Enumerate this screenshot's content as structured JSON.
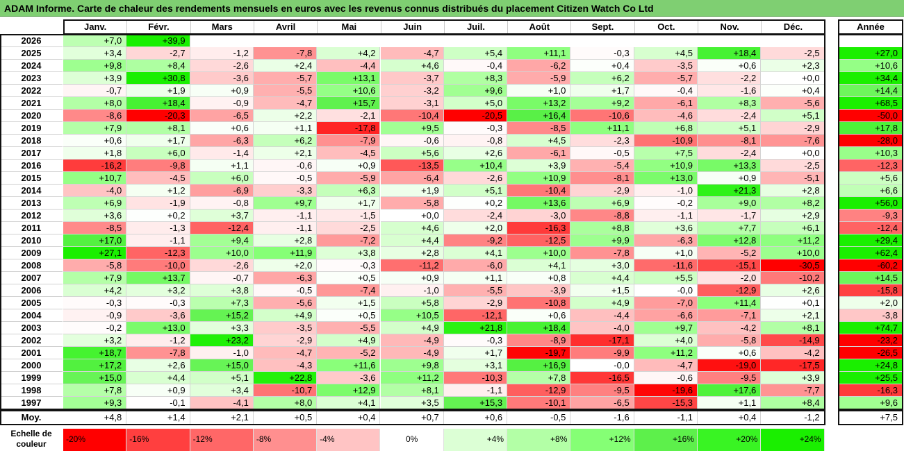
{
  "title": "ADAM Informe. Carte de chaleur des rendements mensuels en euros avec les revenus connus distribués du placement Citizen Watch Co Ltd",
  "chart_data": {
    "type": "heatmap",
    "title": "ADAM Informe. Carte de chaleur des rendements mensuels en euros avec les revenus connus distribués du placement Citizen Watch Co Ltd",
    "columns": [
      "Janv.",
      "Févr.",
      "Mars",
      "Avril",
      "Mai",
      "Juin",
      "Juil.",
      "Août",
      "Sept.",
      "Oct.",
      "Nov.",
      "Déc."
    ],
    "year_header": "Année",
    "rows": [
      {
        "year": "2026",
        "months": [
          "+7,0",
          "+39,9",
          "",
          "",
          "",
          "",
          "",
          "",
          "",
          "",
          "",
          ""
        ],
        "annual": ""
      },
      {
        "year": "2025",
        "months": [
          "+3,4",
          "-2,7",
          "-1,2",
          "-7,8",
          "+4,2",
          "-4,7",
          "+5,4",
          "+11,1",
          "-0,3",
          "+4,5",
          "+18,4",
          "-2,5"
        ],
        "annual": "+27,0"
      },
      {
        "year": "2024",
        "months": [
          "+9,8",
          "+8,4",
          "-2,6",
          "+2,4",
          "-4,4",
          "+4,6",
          "-0,4",
          "-6,2",
          "+0,4",
          "-3,5",
          "+0,6",
          "+2,3"
        ],
        "annual": "+10,6"
      },
      {
        "year": "2023",
        "months": [
          "+3,9",
          "+30,8",
          "-3,6",
          "-5,7",
          "+13,1",
          "-3,7",
          "+8,3",
          "-5,9",
          "+6,2",
          "-5,7",
          "-2,2",
          "+0,0"
        ],
        "annual": "+34,4"
      },
      {
        "year": "2022",
        "months": [
          "-0,7",
          "+1,9",
          "+0,9",
          "-5,5",
          "+10,6",
          "-3,2",
          "+9,6",
          "+1,0",
          "+1,7",
          "-0,4",
          "-1,6",
          "+0,4"
        ],
        "annual": "+14,4"
      },
      {
        "year": "2021",
        "months": [
          "+8,0",
          "+18,4",
          "-0,9",
          "-4,7",
          "+15,7",
          "-3,1",
          "+5,0",
          "+13,2",
          "+9,2",
          "-6,1",
          "+8,3",
          "-5,6"
        ],
        "annual": "+68,5"
      },
      {
        "year": "2020",
        "months": [
          "-8,6",
          "-20,3",
          "-6,5",
          "+2,2",
          "-2,1",
          "-10,4",
          "-20,5",
          "+16,4",
          "-10,6",
          "-4,6",
          "-2,4",
          "+5,1"
        ],
        "annual": "-50,0"
      },
      {
        "year": "2019",
        "months": [
          "+7,9",
          "+8,1",
          "+0,6",
          "+1,1",
          "-17,8",
          "+9,5",
          "-0,3",
          "-8,5",
          "+11,1",
          "+6,8",
          "+5,1",
          "-2,9"
        ],
        "annual": "+17,8"
      },
      {
        "year": "2018",
        "months": [
          "+0,6",
          "+1,7",
          "-6,3",
          "+6,2",
          "-7,9",
          "-0,6",
          "-0,8",
          "+4,5",
          "-2,3",
          "-10,9",
          "-8,1",
          "-7,6"
        ],
        "annual": "-28,0"
      },
      {
        "year": "2017",
        "months": [
          "+1,8",
          "+6,0",
          "-1,4",
          "+2,1",
          "-4,5",
          "+5,6",
          "+2,6",
          "-6,1",
          "-0,5",
          "+7,5",
          "-2,4",
          "+0,0"
        ],
        "annual": "+10,3"
      },
      {
        "year": "2016",
        "months": [
          "-16,2",
          "-9,8",
          "+1,1",
          "-0,6",
          "+0,9",
          "-13,5",
          "+10,4",
          "+3,9",
          "-5,4",
          "+10,9",
          "+13,3",
          "-2,5"
        ],
        "annual": "-12,3"
      },
      {
        "year": "2015",
        "months": [
          "+10,7",
          "-4,5",
          "+6,0",
          "-0,5",
          "-5,9",
          "-6,4",
          "-2,6",
          "+10,9",
          "-8,1",
          "+13,0",
          "+0,9",
          "-5,1"
        ],
        "annual": "+5,6"
      },
      {
        "year": "2014",
        "months": [
          "-4,0",
          "+1,2",
          "-6,9",
          "-3,3",
          "+6,3",
          "+1,9",
          "+5,1",
          "-10,4",
          "-2,9",
          "-1,0",
          "+21,3",
          "+2,8"
        ],
        "annual": "+6,6"
      },
      {
        "year": "2013",
        "months": [
          "+6,9",
          "-1,9",
          "-0,8",
          "+9,7",
          "+1,7",
          "-5,8",
          "+0,2",
          "+13,6",
          "+6,9",
          "-0,2",
          "+9,0",
          "+8,2"
        ],
        "annual": "+56,0"
      },
      {
        "year": "2012",
        "months": [
          "+3,6",
          "+0,2",
          "+3,7",
          "-1,1",
          "-1,5",
          "+0,0",
          "-2,4",
          "-3,0",
          "-8,8",
          "-1,1",
          "-1,7",
          "+2,9"
        ],
        "annual": "-9,3"
      },
      {
        "year": "2011",
        "months": [
          "-8,5",
          "-1,3",
          "-12,4",
          "-1,1",
          "-2,5",
          "+4,6",
          "+2,0",
          "-16,3",
          "+8,8",
          "+3,6",
          "+7,7",
          "+6,1"
        ],
        "annual": "-12,4"
      },
      {
        "year": "2010",
        "months": [
          "+17,0",
          "-1,1",
          "+9,4",
          "+2,8",
          "-7,2",
          "+4,4",
          "-9,2",
          "-12,5",
          "+9,9",
          "-6,3",
          "+12,8",
          "+11,2"
        ],
        "annual": "+29,4"
      },
      {
        "year": "2009",
        "months": [
          "+27,1",
          "-12,3",
          "+10,0",
          "+11,9",
          "+3,8",
          "+2,8",
          "+4,1",
          "+10,0",
          "-7,8",
          "+1,0",
          "-5,2",
          "+10,0"
        ],
        "annual": "+62,4"
      },
      {
        "year": "2008",
        "months": [
          "-5,8",
          "-10,0",
          "-2,6",
          "+2,0",
          "-0,3",
          "-11,2",
          "-6,0",
          "+4,1",
          "+3,0",
          "-11,6",
          "-15,1",
          "-30,5"
        ],
        "annual": "-60,2"
      },
      {
        "year": "2007",
        "months": [
          "+7,9",
          "+13,7",
          "-0,7",
          "-6,3",
          "+0,5",
          "+0,9",
          "+1,1",
          "+0,8",
          "+4,4",
          "+5,5",
          "-2,0",
          "-10,2"
        ],
        "annual": "+14,5"
      },
      {
        "year": "2006",
        "months": [
          "+4,2",
          "+3,2",
          "+3,8",
          "-0,5",
          "-7,4",
          "-1,0",
          "-5,5",
          "-3,9",
          "+1,5",
          "-0,0",
          "-12,9",
          "+2,6"
        ],
        "annual": "-15,8"
      },
      {
        "year": "2005",
        "months": [
          "-0,3",
          "-0,3",
          "+7,3",
          "-5,6",
          "+1,5",
          "+5,8",
          "-2,9",
          "-10,8",
          "+4,9",
          "-7,0",
          "+11,4",
          "+0,1"
        ],
        "annual": "+2,0"
      },
      {
        "year": "2004",
        "months": [
          "-0,9",
          "-3,6",
          "+15,2",
          "+4,9",
          "+0,5",
          "+10,5",
          "-12,1",
          "+0,6",
          "-4,4",
          "-6,6",
          "-7,1",
          "+2,1"
        ],
        "annual": "-3,8"
      },
      {
        "year": "2003",
        "months": [
          "-0,2",
          "+13,0",
          "+3,3",
          "-3,5",
          "-5,5",
          "+4,9",
          "+21,8",
          "+18,4",
          "-4,0",
          "+9,7",
          "-4,2",
          "+8,1"
        ],
        "annual": "+74,7"
      },
      {
        "year": "2002",
        "months": [
          "+3,2",
          "-1,2",
          "+23,2",
          "-2,9",
          "+4,9",
          "-4,9",
          "-0,3",
          "-8,9",
          "-17,1",
          "+4,0",
          "-5,8",
          "-14,9"
        ],
        "annual": "-23,2"
      },
      {
        "year": "2001",
        "months": [
          "+18,7",
          "-7,8",
          "-1,0",
          "-4,7",
          "-5,2",
          "-4,9",
          "+1,7",
          "-19,7",
          "-9,9",
          "+11,2",
          "+0,6",
          "-4,2"
        ],
        "annual": "-26,5"
      },
      {
        "year": "2000",
        "months": [
          "+17,2",
          "+2,6",
          "+15,0",
          "-4,3",
          "+11,6",
          "+9,8",
          "+3,1",
          "+16,9",
          "-0,0",
          "-4,7",
          "-19,0",
          "-17,5"
        ],
        "annual": "+24,8"
      },
      {
        "year": "1999",
        "months": [
          "+15,0",
          "+4,4",
          "+5,1",
          "+22,8",
          "-3,6",
          "+11,2",
          "-10,3",
          "+7,8",
          "-16,5",
          "-0,6",
          "-9,5",
          "+3,9"
        ],
        "annual": "+25,5"
      },
      {
        "year": "1998",
        "months": [
          "+7,8",
          "+0,9",
          "+3,4",
          "-10,7",
          "+12,9",
          "+8,1",
          "-1,1",
          "-12,9",
          "-9,5",
          "-19,6",
          "+17,6",
          "-7,7"
        ],
        "annual": "-16,3"
      },
      {
        "year": "1997",
        "months": [
          "+9,3",
          "-0,1",
          "-4,1",
          "+8,0",
          "+4,1",
          "+3,5",
          "+15,3",
          "-10,1",
          "-6,5",
          "-15,3",
          "+1,1",
          "+8,4"
        ],
        "annual": "+9,6"
      }
    ],
    "average": {
      "label": "Moy.",
      "months": [
        "+4,8",
        "+1,4",
        "+2,1",
        "+0,5",
        "+0,4",
        "+0,7",
        "+0,6",
        "-0,5",
        "-1,6",
        "-1,1",
        "+0,4",
        "-1,2"
      ],
      "annual": "+7,5"
    },
    "scale": {
      "label": "Echelle de couleur",
      "stops": [
        {
          "text": "-20%",
          "value": -20,
          "color": "#ff0000"
        },
        {
          "text": "-16%",
          "value": -16,
          "color": "#ff3f3f"
        },
        {
          "text": "-12%",
          "value": -12,
          "color": "#ff6767"
        },
        {
          "text": "-8%",
          "value": -8,
          "color": "#ff8f8f"
        },
        {
          "text": "-4%",
          "value": -4,
          "color": "#ffc4c4"
        },
        {
          "text": "0%",
          "value": 0,
          "color": "#ffffff"
        },
        {
          "text": "+4%",
          "value": 4,
          "color": "#dcffd5"
        },
        {
          "text": "+8%",
          "value": 8,
          "color": "#b3ffa6"
        },
        {
          "text": "+12%",
          "value": 12,
          "color": "#85ff75"
        },
        {
          "text": "+16%",
          "value": 16,
          "color": "#5df04b"
        },
        {
          "text": "+20%",
          "value": 20,
          "color": "#39f423"
        },
        {
          "text": "+24%",
          "value": 24,
          "color": "#1aef00"
        }
      ]
    }
  }
}
